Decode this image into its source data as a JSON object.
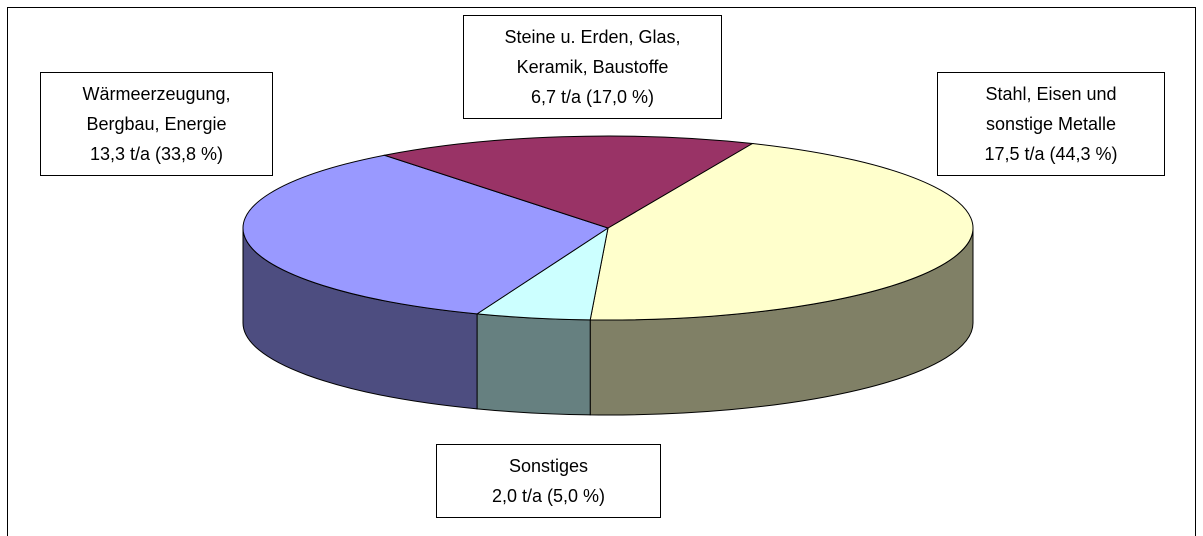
{
  "chart_data": {
    "type": "pie",
    "categories": [
      "Stahl, Eisen und sonstige Metalle",
      "Sonstiges",
      "Wärmeerzeugung, Bergbau, Energie",
      "Steine u. Erden, Glas, Keramik, Baustoffe"
    ],
    "values": [
      17.5,
      2.0,
      13.3,
      6.7
    ],
    "value_labels": [
      "17,5 t/a (44,3 %)",
      "2,0 t/a (5,0 %)",
      "13,3 t/a (33,8 %)",
      "6,7 t/a (17,0 %)"
    ],
    "colors": [
      "#ffffcc",
      "#ccffff",
      "#9999ff",
      "#993366"
    ]
  }
}
